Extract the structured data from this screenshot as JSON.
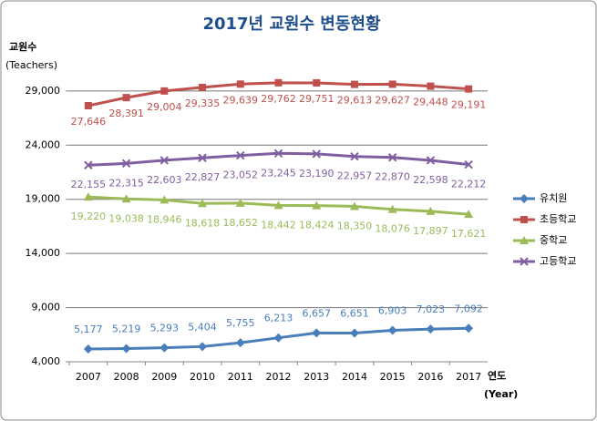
{
  "chart_data": {
    "type": "line",
    "title": "2017년 교원수 변동현황",
    "y_label": "교원수",
    "y_label_sub": "(Teachers)",
    "x_label": "연도",
    "x_label_sub": "(Year)",
    "categories": [
      "2007",
      "2008",
      "2009",
      "2010",
      "2011",
      "2012",
      "2013",
      "2014",
      "2015",
      "2016",
      "2017"
    ],
    "ylim": [
      4000,
      30000
    ],
    "yticks": [
      {
        "value": 4000,
        "label": "4,000"
      },
      {
        "value": 9000,
        "label": "9,000"
      },
      {
        "value": 14000,
        "label": "14,000"
      },
      {
        "value": 19000,
        "label": "19,000"
      },
      {
        "value": 24000,
        "label": "24,000"
      },
      {
        "value": 29000,
        "label": "29,000"
      }
    ],
    "grid": true,
    "legend": "right",
    "series": [
      {
        "name": "유치원",
        "color": "#4a7ebb",
        "marker": "diamond",
        "values": [
          5177,
          5219,
          5293,
          5404,
          5755,
          6213,
          6657,
          6651,
          6903,
          7023,
          7092
        ],
        "value_labels": [
          "5,177",
          "5,219",
          "5,293",
          "5,404",
          "5,755",
          "6,213",
          "6,657",
          "6,651",
          "6,903",
          "7,023",
          "7,092"
        ]
      },
      {
        "name": "초등학교",
        "color": "#c0504d",
        "marker": "square",
        "values": [
          27646,
          28391,
          29004,
          29335,
          29639,
          29762,
          29751,
          29613,
          29627,
          29448,
          29191
        ],
        "value_labels": [
          "27,646",
          "28,391",
          "29,004",
          "29,335",
          "29,639",
          "29,762",
          "29,751",
          "29,613",
          "29,627",
          "29,448",
          "29,191"
        ]
      },
      {
        "name": "중학교",
        "color": "#9bbb59",
        "marker": "triangle",
        "values": [
          19220,
          19038,
          18946,
          18618,
          18652,
          18442,
          18424,
          18350,
          18076,
          17897,
          17621
        ],
        "value_labels": [
          "19,220",
          "19,038",
          "18,946",
          "18,618",
          "18,652",
          "18,442",
          "18,424",
          "18,350",
          "18,076",
          "17,897",
          "17,621"
        ]
      },
      {
        "name": "고등학교",
        "color": "#7f5fa0",
        "marker": "x",
        "values": [
          22155,
          22315,
          22603,
          22827,
          23052,
          23245,
          23190,
          22957,
          22870,
          22598,
          22212
        ],
        "value_labels": [
          "22,155",
          "22,315",
          "22,603",
          "22,827",
          "23,052",
          "23,245",
          "23,190",
          "22,957",
          "22,870",
          "22,598",
          "22,212"
        ]
      }
    ]
  }
}
